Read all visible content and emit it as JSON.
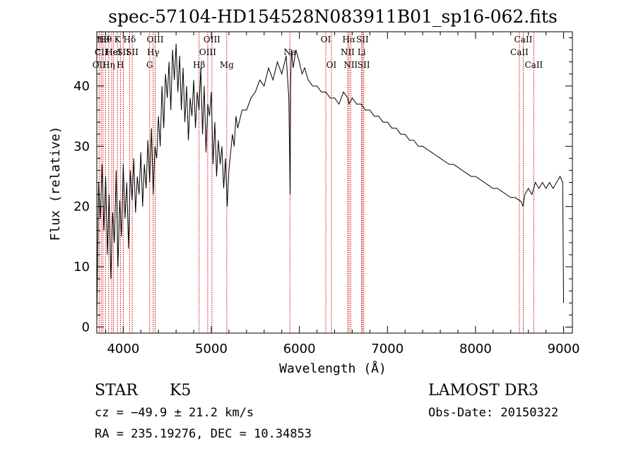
{
  "chart_data": {
    "type": "line",
    "title": "spec-57104-HD154528N083911B01_sp16-062.fits",
    "xlabel": "Wavelength (Å)",
    "ylabel": "Flux (relative)",
    "xlim": [
      3700,
      9100
    ],
    "ylim": [
      -1,
      49
    ],
    "x_ticks": [
      4000,
      5000,
      6000,
      7000,
      8000,
      9000
    ],
    "x_tick_labels": [
      "4000",
      "5000",
      "6000",
      "7000",
      "8000",
      "9000"
    ],
    "y_ticks": [
      0,
      10,
      20,
      30,
      40
    ],
    "y_tick_labels": [
      "0",
      "10",
      "20",
      "30",
      "40"
    ],
    "grid": false,
    "series": [
      {
        "x": [
          3700,
          3720,
          3740,
          3760,
          3780,
          3800,
          3820,
          3840,
          3860,
          3880,
          3900,
          3920,
          3940,
          3960,
          3980,
          4000,
          4020,
          4040,
          4060,
          4080,
          4100,
          4120,
          4140,
          4160,
          4180,
          4200,
          4220,
          4240,
          4260,
          4280,
          4300,
          4320,
          4340,
          4360,
          4380,
          4400,
          4420,
          4440,
          4460,
          4480,
          4500,
          4520,
          4540,
          4560,
          4580,
          4600,
          4620,
          4640,
          4660,
          4680,
          4700,
          4720,
          4740,
          4760,
          4780,
          4800,
          4820,
          4840,
          4860,
          4880,
          4900,
          4920,
          4940,
          4960,
          4980,
          5000,
          5020,
          5040,
          5060,
          5080,
          5100,
          5120,
          5140,
          5160,
          5180,
          5200,
          5220,
          5240,
          5260,
          5280,
          5300,
          5350,
          5400,
          5450,
          5500,
          5550,
          5600,
          5650,
          5700,
          5750,
          5800,
          5850,
          5880,
          5895,
          5900,
          5910,
          5930,
          5960,
          6000,
          6030,
          6060,
          6100,
          6150,
          6200,
          6250,
          6300,
          6350,
          6400,
          6450,
          6500,
          6550,
          6563,
          6600,
          6650,
          6700,
          6750,
          6800,
          6850,
          6900,
          6950,
          7000,
          7050,
          7100,
          7150,
          7200,
          7250,
          7300,
          7350,
          7400,
          7450,
          7500,
          7550,
          7600,
          7650,
          7700,
          7750,
          7800,
          7850,
          7900,
          7950,
          8000,
          8050,
          8100,
          8150,
          8200,
          8250,
          8300,
          8350,
          8400,
          8450,
          8500,
          8520,
          8540,
          8560,
          8600,
          8640,
          8680,
          8720,
          8760,
          8800,
          8840,
          8880,
          8920,
          8960,
          8990,
          9000
        ],
        "y": [
          1,
          24,
          18,
          27,
          16,
          25,
          12,
          22,
          8,
          19,
          14,
          26,
          10,
          21,
          15,
          27,
          18,
          24,
          13,
          26,
          21,
          28,
          19,
          25,
          22,
          29,
          20,
          27,
          23,
          31,
          24,
          33,
          22,
          30,
          28,
          35,
          30,
          40,
          33,
          42,
          38,
          44,
          36,
          46,
          41,
          47,
          39,
          45,
          36,
          43,
          34,
          40,
          31,
          38,
          35,
          41,
          33,
          39,
          36,
          43,
          32,
          40,
          29,
          37,
          35,
          39,
          27,
          34,
          25,
          31,
          27,
          30,
          23,
          28,
          20,
          26,
          29,
          32,
          30,
          35,
          33,
          36,
          36,
          38,
          39,
          41,
          40,
          43,
          41,
          44,
          42,
          45,
          38,
          22,
          40,
          46,
          43,
          46,
          44,
          42,
          43,
          41,
          40,
          40,
          39,
          39,
          38,
          38,
          37,
          39,
          38,
          37,
          38,
          37,
          37,
          36,
          36,
          35,
          35,
          34,
          34,
          33,
          33,
          32,
          32,
          31,
          31,
          30,
          30,
          29.5,
          29,
          28.5,
          28,
          27.5,
          27,
          27,
          26.5,
          26,
          25.5,
          25,
          25,
          24.5,
          24,
          23.5,
          23,
          23,
          22.5,
          22,
          21.5,
          21.5,
          21,
          20.8,
          20,
          22,
          23,
          22,
          24,
          23,
          24,
          23,
          24,
          23,
          24,
          25,
          24,
          4
        ]
      }
    ],
    "spectral_lines": [
      {
        "wl": 3727,
        "label": "OII",
        "row": 2
      },
      {
        "wl": 3750,
        "label": "CII",
        "row": 1
      },
      {
        "wl": 3770,
        "label": "Hθ",
        "row": 0
      },
      {
        "wl": 3798,
        "label": "Hθ",
        "row": 0
      },
      {
        "wl": 3835,
        "label": "Hη",
        "row": 2
      },
      {
        "wl": 3869,
        "label": "He",
        "row": 1
      },
      {
        "wl": 3889,
        "label": "HeI",
        "row": 1
      },
      {
        "wl": 3934,
        "label": "K",
        "row": 0
      },
      {
        "wl": 3968,
        "label": "H",
        "row": 2
      },
      {
        "wl": 4000,
        "label": "SII",
        "row": 1
      },
      {
        "wl": 4072,
        "label": "Hδ",
        "row": 0
      },
      {
        "wl": 4102,
        "label": "SII",
        "row": 1
      },
      {
        "wl": 4300,
        "label": "G",
        "row": 2
      },
      {
        "wl": 4340,
        "label": "Hγ",
        "row": 1
      },
      {
        "wl": 4363,
        "label": "OIII",
        "row": 0
      },
      {
        "wl": 4861,
        "label": "Hβ",
        "row": 2
      },
      {
        "wl": 4959,
        "label": "OIII",
        "row": 1
      },
      {
        "wl": 5007,
        "label": "OIII",
        "row": 0
      },
      {
        "wl": 5175,
        "label": "Mg",
        "row": 2
      },
      {
        "wl": 5893,
        "label": "Na",
        "row": 1
      },
      {
        "wl": 6300,
        "label": "OI",
        "row": 0
      },
      {
        "wl": 6364,
        "label": "OI",
        "row": 2
      },
      {
        "wl": 6548,
        "label": "NII",
        "row": 1
      },
      {
        "wl": 6563,
        "label": "Hα",
        "row": 0
      },
      {
        "wl": 6583,
        "label": "NII",
        "row": 2
      },
      {
        "wl": 6707,
        "label": "Li",
        "row": 1
      },
      {
        "wl": 6716,
        "label": "SII",
        "row": 0
      },
      {
        "wl": 6731,
        "label": "SII",
        "row": 2
      },
      {
        "wl": 8498,
        "label": "CaII",
        "row": 1
      },
      {
        "wl": 8542,
        "label": "CaII",
        "row": 0
      },
      {
        "wl": 8662,
        "label": "CaII",
        "row": 2
      }
    ]
  },
  "info": {
    "object_class": "STAR",
    "subclass": "K5",
    "survey": "LAMOST DR3",
    "cz": "cz = −49.9 ± 21.2 km/s",
    "obs_date": "Obs-Date: 20150322",
    "coords": "RA = 235.19276, DEC =  10.34853"
  },
  "colors": {
    "spectrum": "#000000",
    "line_marker": "#cc0000",
    "axes": "#000000",
    "background": "#ffffff"
  }
}
